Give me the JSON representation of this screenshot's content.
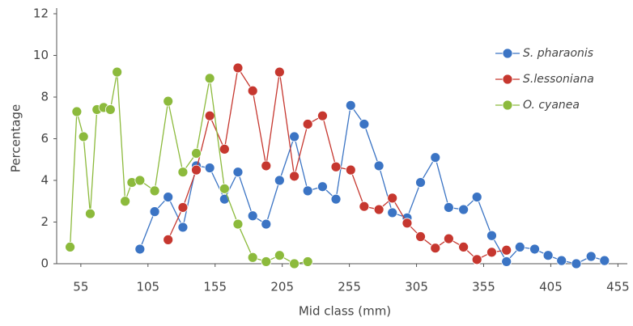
{
  "chart_data": {
    "type": "line",
    "x_label": "Mid class (mm)",
    "y_label": "Percentage",
    "xlim": [
      37,
      462
    ],
    "xticks": [
      55,
      105,
      155,
      205,
      255,
      305,
      355,
      405,
      455
    ],
    "ylim": [
      0,
      12
    ],
    "yticks": [
      0,
      2,
      4,
      6,
      8,
      10,
      12
    ],
    "legend": "upper right",
    "series": [
      {
        "name": "S. pharaonis",
        "color": "#3b74c4",
        "x": [
          99,
          110,
          120,
          131,
          141,
          151,
          162,
          172,
          183,
          193,
          203,
          214,
          224,
          235,
          245,
          256,
          266,
          277,
          287,
          298,
          308,
          319,
          329,
          340,
          350,
          361,
          372,
          382,
          393,
          403,
          413,
          424,
          435,
          445
        ],
        "values": [
          0.7,
          2.5,
          3.2,
          1.75,
          4.7,
          4.6,
          3.1,
          4.4,
          2.3,
          1.9,
          4.0,
          6.1,
          3.5,
          3.7,
          3.1,
          7.6,
          6.7,
          4.7,
          2.45,
          2.2,
          3.9,
          5.1,
          2.7,
          2.6,
          3.2,
          1.35,
          0.1,
          0.8,
          0.7,
          0.4,
          0.15,
          0.0,
          0.35,
          0.15
        ]
      },
      {
        "name": "S.lessoniana",
        "color": "#c6372f",
        "x": [
          120,
          131,
          141,
          151,
          162,
          172,
          183,
          193,
          203,
          214,
          224,
          235,
          245,
          256,
          266,
          277,
          287,
          298,
          308,
          319,
          329,
          340,
          350,
          361,
          372
        ],
        "values": [
          1.15,
          2.7,
          4.5,
          7.1,
          5.5,
          9.4,
          8.3,
          4.7,
          9.2,
          4.2,
          6.7,
          7.1,
          4.65,
          4.5,
          2.75,
          2.6,
          3.15,
          1.95,
          1.3,
          0.75,
          1.2,
          0.8,
          0.2,
          0.55,
          0.65
        ]
      },
      {
        "name": "O. cyanea",
        "color": "#8cba3c",
        "x": [
          47,
          52,
          57,
          62,
          67,
          72,
          77,
          82,
          88,
          93,
          99,
          110,
          120,
          131,
          141,
          151,
          162,
          172,
          183,
          193,
          203,
          214,
          224
        ],
        "values": [
          0.8,
          7.3,
          6.1,
          2.4,
          7.4,
          7.5,
          7.4,
          9.2,
          3.0,
          3.9,
          4.0,
          3.5,
          7.8,
          4.4,
          5.3,
          8.9,
          3.6,
          1.9,
          0.3,
          0.1,
          0.4,
          0.0,
          0.1
        ]
      }
    ]
  }
}
